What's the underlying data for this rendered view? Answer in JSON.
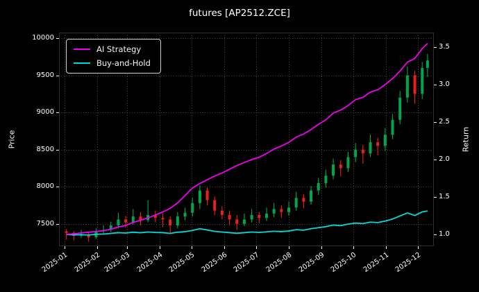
{
  "colors": {
    "figure_bg": "#000000",
    "text": "#ffffff",
    "grid": "#4d4d4d",
    "up": "#00a550",
    "down": "#e8221a"
  },
  "chart_data": {
    "type": "candlestick",
    "title": "futures [AP2512.ZCE]",
    "ylabel_left": "Price",
    "ylabel_right": "Return",
    "legend_position": "upper left",
    "grid": true,
    "price_ticks": [
      7500,
      8000,
      8500,
      9000,
      9500,
      10000
    ],
    "return_ticks": [
      1.0,
      1.5,
      2.0,
      2.5,
      3.0,
      3.5
    ],
    "price_range": [
      7200,
      10075
    ],
    "return_range": [
      0.843,
      3.694
    ],
    "x_range": [
      "2024-12-27",
      "2025-12-16"
    ],
    "x_ticks": [
      {
        "date": "2025-01-01",
        "label": "2025-01"
      },
      {
        "date": "2025-02-01",
        "label": "2025-02"
      },
      {
        "date": "2025-03-01",
        "label": "2025-03"
      },
      {
        "date": "2025-04-01",
        "label": "2025-04"
      },
      {
        "date": "2025-05-01",
        "label": "2025-05"
      },
      {
        "date": "2025-06-01",
        "label": "2025-06"
      },
      {
        "date": "2025-07-01",
        "label": "2025-07"
      },
      {
        "date": "2025-08-01",
        "label": "2025-08"
      },
      {
        "date": "2025-09-01",
        "label": "2025-09"
      },
      {
        "date": "2025-10-01",
        "label": "2025-10"
      },
      {
        "date": "2025-11-01",
        "label": "2025-11"
      },
      {
        "date": "2025-12-01",
        "label": "2025-12"
      }
    ],
    "candles": {
      "columns": [
        "date",
        "open",
        "high",
        "low",
        "close"
      ],
      "rows": [
        [
          "2025-01-03",
          7400,
          7430,
          7290,
          7380
        ],
        [
          "2025-01-10",
          7380,
          7400,
          7280,
          7340
        ],
        [
          "2025-01-17",
          7340,
          7420,
          7310,
          7360
        ],
        [
          "2025-01-24",
          7360,
          7390,
          7260,
          7320
        ],
        [
          "2025-01-31",
          7320,
          7440,
          7300,
          7400
        ],
        [
          "2025-02-07",
          7400,
          7480,
          7360,
          7420
        ],
        [
          "2025-02-14",
          7420,
          7530,
          7390,
          7480
        ],
        [
          "2025-02-21",
          7480,
          7650,
          7440,
          7560
        ],
        [
          "2025-02-28",
          7560,
          7610,
          7450,
          7520
        ],
        [
          "2025-03-07",
          7520,
          7700,
          7490,
          7600
        ],
        [
          "2025-03-14",
          7600,
          7660,
          7480,
          7550
        ],
        [
          "2025-03-21",
          7550,
          7820,
          7520,
          7620
        ],
        [
          "2025-03-28",
          7620,
          7680,
          7520,
          7580
        ],
        [
          "2025-04-04",
          7580,
          7640,
          7460,
          7560
        ],
        [
          "2025-04-11",
          7560,
          7600,
          7380,
          7480
        ],
        [
          "2025-04-18",
          7480,
          7660,
          7440,
          7600
        ],
        [
          "2025-04-25",
          7600,
          7720,
          7550,
          7650
        ],
        [
          "2025-05-02",
          7650,
          7850,
          7600,
          7780
        ],
        [
          "2025-05-09",
          7780,
          8020,
          7700,
          7950
        ],
        [
          "2025-05-16",
          7950,
          7990,
          7750,
          7820
        ],
        [
          "2025-05-23",
          7820,
          7870,
          7620,
          7680
        ],
        [
          "2025-05-30",
          7680,
          7740,
          7560,
          7620
        ],
        [
          "2025-06-06",
          7620,
          7680,
          7480,
          7560
        ],
        [
          "2025-06-13",
          7560,
          7620,
          7420,
          7500
        ],
        [
          "2025-06-20",
          7500,
          7640,
          7470,
          7560
        ],
        [
          "2025-06-27",
          7560,
          7700,
          7520,
          7620
        ],
        [
          "2025-07-04",
          7620,
          7660,
          7510,
          7580
        ],
        [
          "2025-07-11",
          7580,
          7720,
          7540,
          7640
        ],
        [
          "2025-07-18",
          7640,
          7780,
          7590,
          7700
        ],
        [
          "2025-07-25",
          7700,
          7750,
          7580,
          7660
        ],
        [
          "2025-08-01",
          7660,
          7800,
          7610,
          7720
        ],
        [
          "2025-08-08",
          7720,
          7930,
          7680,
          7850
        ],
        [
          "2025-08-15",
          7850,
          7900,
          7710,
          7800
        ],
        [
          "2025-08-22",
          7800,
          8010,
          7760,
          7950
        ],
        [
          "2025-08-29",
          7950,
          8120,
          7890,
          8050
        ],
        [
          "2025-09-05",
          8050,
          8230,
          7990,
          8150
        ],
        [
          "2025-09-12",
          8150,
          8380,
          8100,
          8300
        ],
        [
          "2025-09-19",
          8300,
          8360,
          8140,
          8250
        ],
        [
          "2025-09-26",
          8250,
          8470,
          8200,
          8400
        ],
        [
          "2025-10-03",
          8400,
          8590,
          8330,
          8500
        ],
        [
          "2025-10-10",
          8500,
          8560,
          8310,
          8450
        ],
        [
          "2025-10-17",
          8450,
          8700,
          8400,
          8600
        ],
        [
          "2025-10-24",
          8600,
          8660,
          8420,
          8550
        ],
        [
          "2025-10-31",
          8550,
          8790,
          8480,
          8700
        ],
        [
          "2025-11-07",
          8700,
          8980,
          8640,
          8900
        ],
        [
          "2025-11-14",
          8900,
          9290,
          8840,
          9200
        ],
        [
          "2025-11-21",
          9200,
          9620,
          9130,
          9500
        ],
        [
          "2025-11-28",
          9500,
          9560,
          9120,
          9250
        ],
        [
          "2025-12-05",
          9250,
          9680,
          9180,
          9600
        ],
        [
          "2025-12-10",
          9600,
          9790,
          9480,
          9700
        ]
      ]
    },
    "series": [
      {
        "name": "AI Strategy",
        "axis": "right",
        "color": "#f000f0",
        "values": [
          1.0,
          1.01,
          1.02,
          1.03,
          1.04,
          1.05,
          1.07,
          1.1,
          1.12,
          1.16,
          1.19,
          1.22,
          1.26,
          1.3,
          1.35,
          1.42,
          1.52,
          1.62,
          1.68,
          1.73,
          1.78,
          1.82,
          1.87,
          1.92,
          1.96,
          2.0,
          2.03,
          2.08,
          2.14,
          2.18,
          2.23,
          2.3,
          2.34,
          2.4,
          2.47,
          2.53,
          2.62,
          2.66,
          2.72,
          2.8,
          2.83,
          2.9,
          2.93,
          3.0,
          3.08,
          3.18,
          3.3,
          3.35,
          3.48,
          3.55
        ]
      },
      {
        "name": "Buy-and-Hold",
        "axis": "right",
        "color": "#00dcdc",
        "values": [
          1.0,
          0.995,
          0.997,
          0.992,
          1.003,
          1.005,
          1.014,
          1.024,
          1.019,
          1.03,
          1.023,
          1.033,
          1.027,
          1.024,
          1.014,
          1.03,
          1.037,
          1.054,
          1.077,
          1.06,
          1.041,
          1.033,
          1.024,
          1.016,
          1.024,
          1.033,
          1.027,
          1.035,
          1.043,
          1.038,
          1.046,
          1.064,
          1.057,
          1.077,
          1.091,
          1.104,
          1.125,
          1.118,
          1.138,
          1.152,
          1.145,
          1.165,
          1.159,
          1.179,
          1.206,
          1.247,
          1.287,
          1.253,
          1.301,
          1.314
        ]
      }
    ]
  }
}
